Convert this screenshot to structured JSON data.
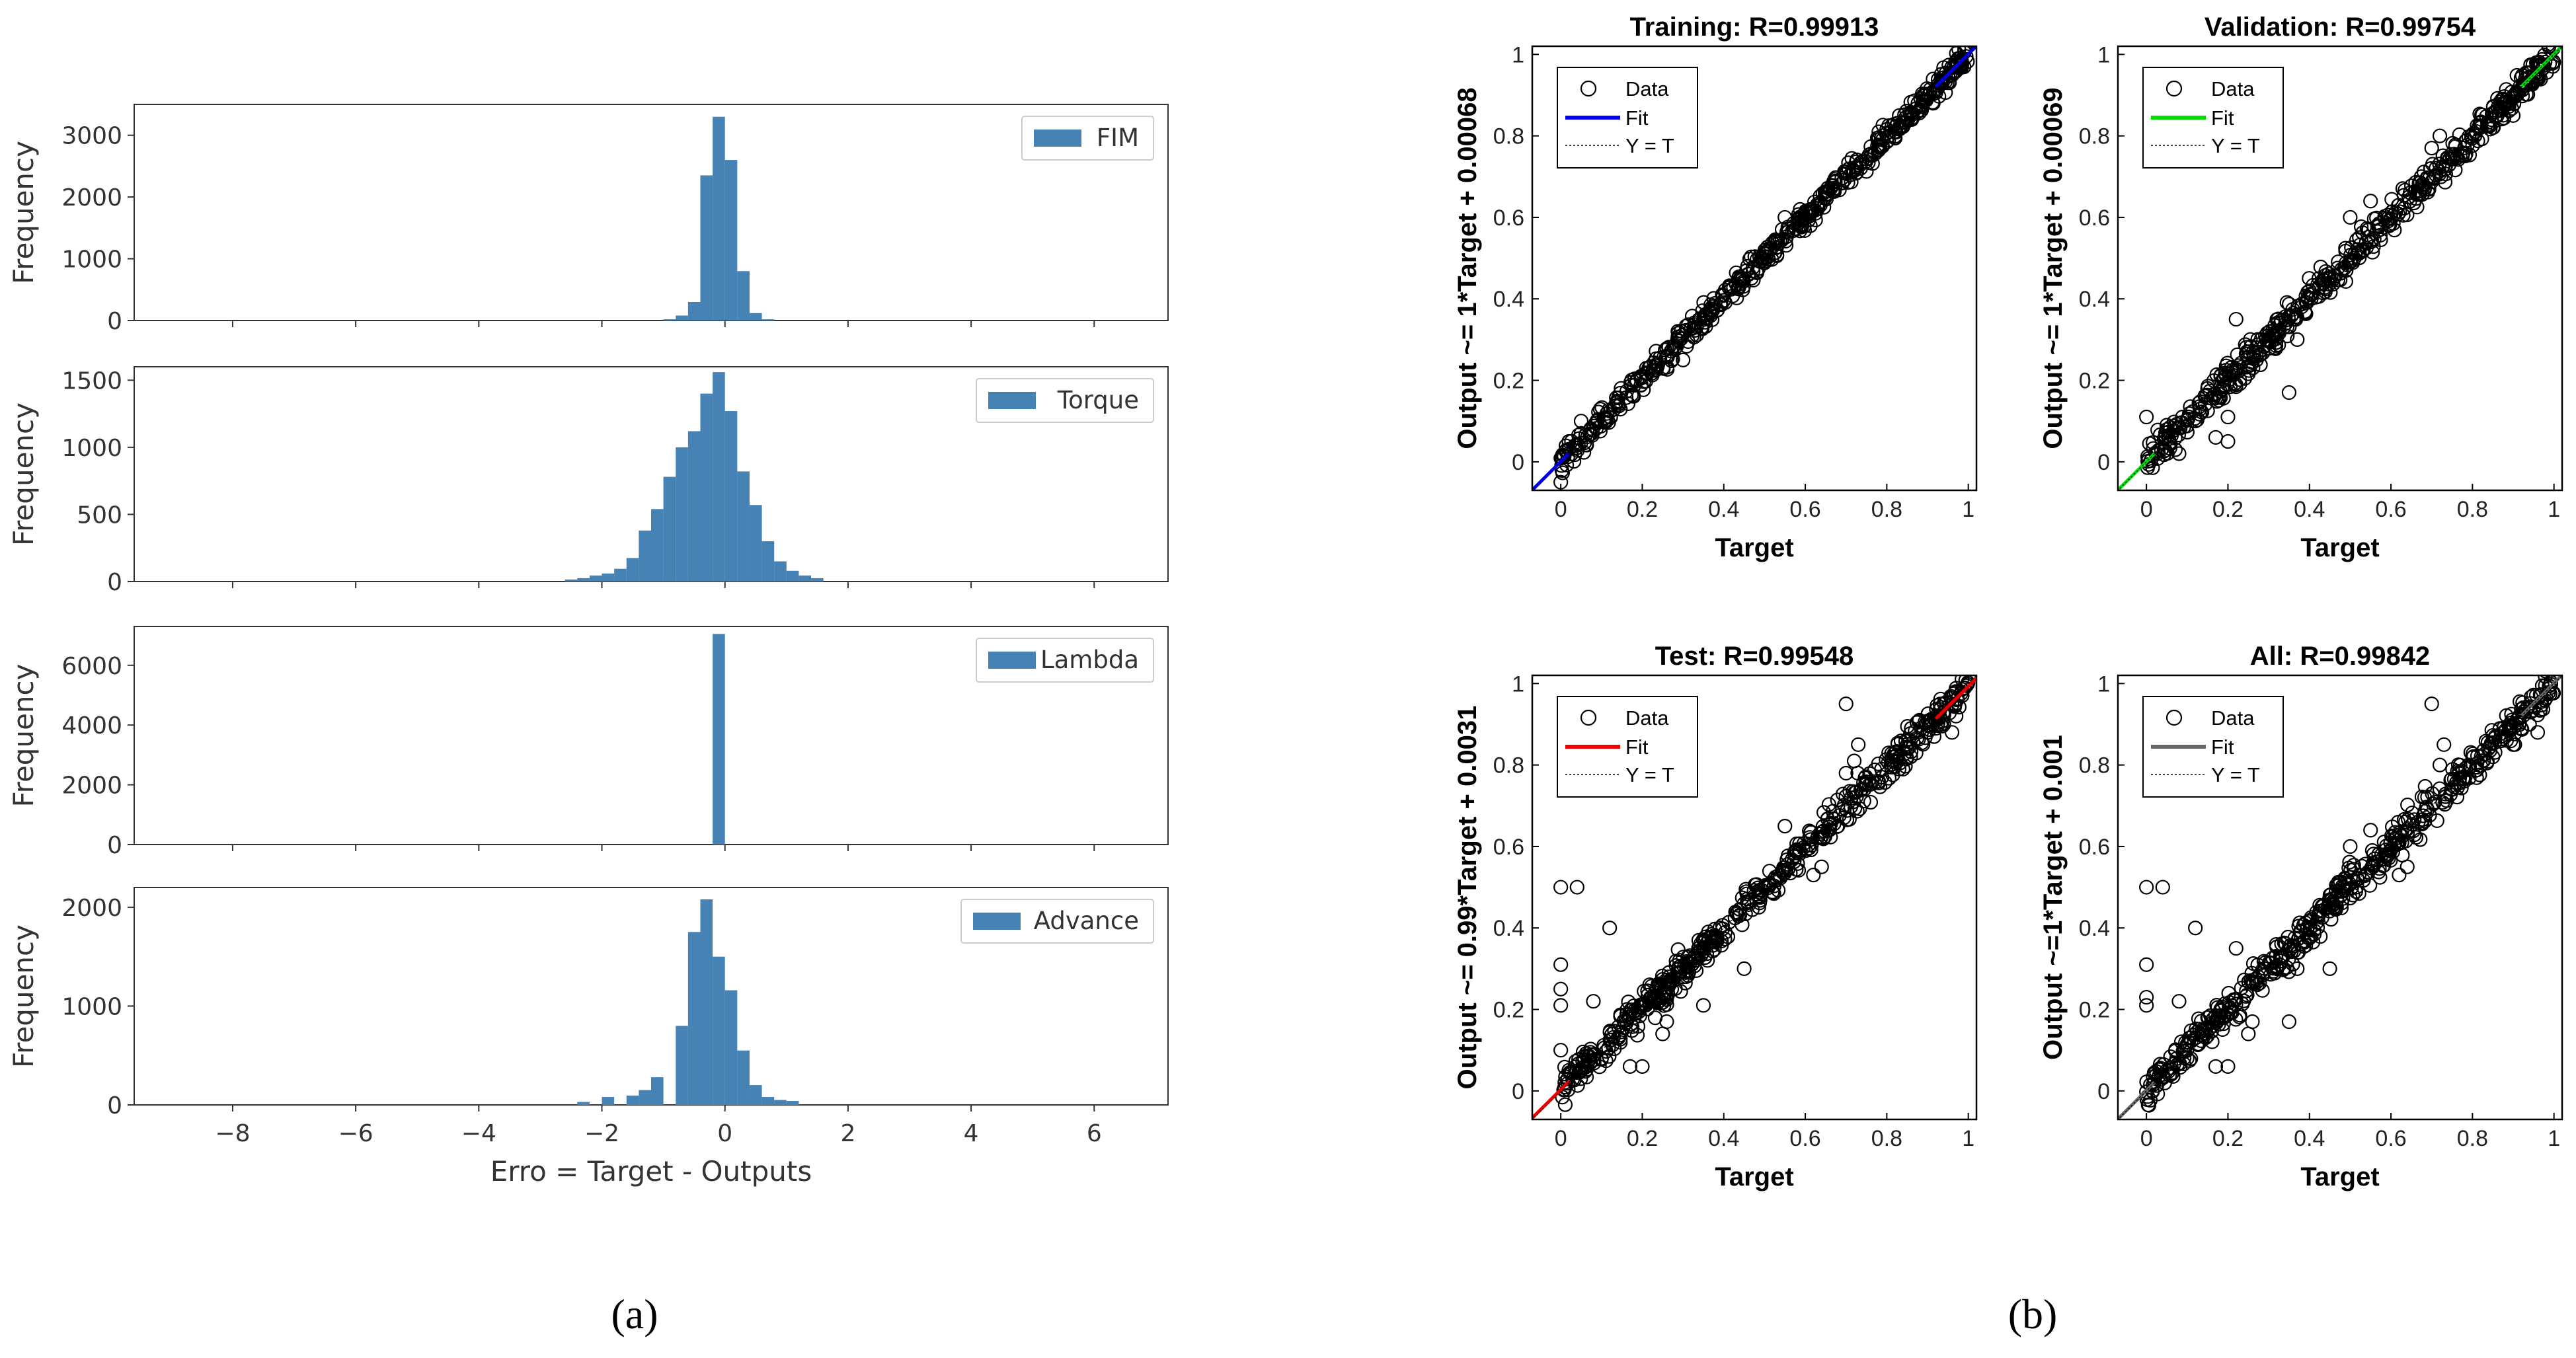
{
  "chart_data": [
    {
      "type": "bar",
      "title": "",
      "xlabel": "Erro = Target - Outputs",
      "ylabel": "Frequency",
      "xlim": [
        -9.6,
        7.2
      ],
      "xticks": [
        -8,
        -6,
        -4,
        -2,
        0,
        2,
        4,
        6
      ],
      "panels": [
        {
          "name": "FIM",
          "ylim": [
            0,
            3500
          ],
          "yticks": [
            0,
            1000,
            2000,
            3000
          ],
          "bins": [
            [
              -1.0,
              20
            ],
            [
              -0.8,
              80
            ],
            [
              -0.6,
              300
            ],
            [
              -0.4,
              2350
            ],
            [
              -0.2,
              3300
            ],
            [
              0.0,
              2600
            ],
            [
              0.2,
              800
            ],
            [
              0.4,
              120
            ],
            [
              0.6,
              20
            ]
          ]
        },
        {
          "name": "Torque",
          "ylim": [
            0,
            1600
          ],
          "yticks": [
            0,
            500,
            1000,
            1500
          ],
          "bins": [
            [
              -2.6,
              15
            ],
            [
              -2.4,
              25
            ],
            [
              -2.2,
              45
            ],
            [
              -2.0,
              60
            ],
            [
              -1.8,
              95
            ],
            [
              -1.6,
              175
            ],
            [
              -1.4,
              380
            ],
            [
              -1.2,
              540
            ],
            [
              -1.0,
              780
            ],
            [
              -0.8,
              1000
            ],
            [
              -0.6,
              1120
            ],
            [
              -0.4,
              1400
            ],
            [
              -0.2,
              1560
            ],
            [
              0.0,
              1270
            ],
            [
              0.2,
              820
            ],
            [
              0.4,
              570
            ],
            [
              0.6,
              300
            ],
            [
              0.8,
              150
            ],
            [
              1.0,
              80
            ],
            [
              1.2,
              45
            ],
            [
              1.4,
              25
            ]
          ]
        },
        {
          "name": "Lambda",
          "ylim": [
            0,
            7300
          ],
          "yticks": [
            0,
            2000,
            4000,
            6000
          ],
          "bins": [
            [
              -0.2,
              7050
            ]
          ]
        },
        {
          "name": "Advance",
          "ylim": [
            0,
            2200
          ],
          "yticks": [
            0,
            1000,
            2000
          ],
          "bins": [
            [
              -2.4,
              30
            ],
            [
              -2.0,
              80
            ],
            [
              -1.6,
              95
            ],
            [
              -1.4,
              150
            ],
            [
              -1.2,
              280
            ],
            [
              -0.8,
              800
            ],
            [
              -0.6,
              1750
            ],
            [
              -0.4,
              2080
            ],
            [
              -0.2,
              1500
            ],
            [
              0.0,
              1160
            ],
            [
              0.2,
              550
            ],
            [
              0.4,
              200
            ],
            [
              0.6,
              80
            ],
            [
              0.8,
              50
            ],
            [
              1.0,
              40
            ]
          ]
        }
      ]
    },
    {
      "type": "scatter",
      "xlim": [
        -0.07,
        1.02
      ],
      "ylim": [
        -0.07,
        1.02
      ],
      "xticks": [
        0,
        0.2,
        0.4,
        0.6,
        0.8,
        1
      ],
      "yticks": [
        0,
        0.2,
        0.4,
        0.6,
        0.8,
        1
      ],
      "legend": [
        "Data",
        "Fit",
        "Y = T"
      ],
      "panels": [
        {
          "title": "Training: R=0.99913",
          "xlabel": "Target",
          "ylabel": "Output ~= 1*Target + 0.00068",
          "fit_color": "#0000ff",
          "fit_slope": 1,
          "fit_intercept": 0.00068,
          "noise": 0.015,
          "outliers": [
            [
              0,
              -0.05
            ],
            [
              0.02,
              0.05
            ],
            [
              0.05,
              0.1
            ],
            [
              0.3,
              0.25
            ],
            [
              0.55,
              0.6
            ]
          ]
        },
        {
          "title": "Validation: R=0.99754",
          "xlabel": "Target",
          "ylabel": "Output ~= 1*Target + 0.00069",
          "fit_color": "#00dd00",
          "fit_slope": 1,
          "fit_intercept": 0.00069,
          "noise": 0.02,
          "outliers": [
            [
              0,
              0.11
            ],
            [
              0.05,
              0.09
            ],
            [
              0.08,
              0.02
            ],
            [
              0.12,
              0.1
            ],
            [
              0.15,
              0.18
            ],
            [
              0.17,
              0.06
            ],
            [
              0.2,
              0.05
            ],
            [
              0.2,
              0.11
            ],
            [
              0.22,
              0.35
            ],
            [
              0.27,
              0.25
            ],
            [
              0.35,
              0.17
            ],
            [
              0.3,
              0.3
            ],
            [
              0.37,
              0.3
            ],
            [
              0.5,
              0.6
            ],
            [
              0.55,
              0.64
            ],
            [
              0.7,
              0.77
            ],
            [
              0.72,
              0.8
            ],
            [
              0.85,
              0.82
            ],
            [
              0.87,
              0.87
            ],
            [
              0.9,
              0.85
            ]
          ]
        },
        {
          "title": "Test: R=0.99548",
          "xlabel": "Target",
          "ylabel": "Output ~= 0.99*Target + 0.0031",
          "fit_color": "#ee0000",
          "fit_slope": 0.99,
          "fit_intercept": 0.0031,
          "noise": 0.02,
          "outliers": [
            [
              0,
              0.5
            ],
            [
              0.04,
              0.5
            ],
            [
              0,
              0.31
            ],
            [
              0,
              0.25
            ],
            [
              0,
              0.21
            ],
            [
              0.12,
              0.4
            ],
            [
              0.08,
              0.22
            ],
            [
              0.05,
              0.05
            ],
            [
              0.1,
              0.08
            ],
            [
              0.17,
              0.06
            ],
            [
              0.25,
              0.14
            ],
            [
              0.26,
              0.17
            ],
            [
              0.3,
              0.28
            ],
            [
              0.35,
              0.21
            ],
            [
              0.45,
              0.3
            ],
            [
              0.5,
              0.5
            ],
            [
              0.55,
              0.65
            ],
            [
              0.62,
              0.53
            ],
            [
              0.64,
              0.55
            ],
            [
              0.7,
              0.78
            ],
            [
              0.72,
              0.81
            ],
            [
              0.73,
              0.85
            ],
            [
              0.7,
              0.95
            ],
            [
              0.78,
              0.76
            ],
            [
              0.86,
              0.89
            ],
            [
              0.88,
              0.91
            ],
            [
              0.9,
              0.88
            ],
            [
              0.92,
              0.89
            ],
            [
              0.94,
              0.9
            ],
            [
              0.96,
              0.88
            ],
            [
              0.97,
              0.92
            ],
            [
              0.2,
              0.06
            ],
            [
              0,
              0.1
            ]
          ]
        },
        {
          "title": "All: R=0.99842",
          "xlabel": "Target",
          "ylabel": "Output ~=1*Target + 0.001",
          "fit_color": "#666666",
          "fit_slope": 1,
          "fit_intercept": 0.001,
          "noise": 0.022,
          "outliers": [
            [
              0,
              0.5
            ],
            [
              0.04,
              0.5
            ],
            [
              0,
              0.31
            ],
            [
              0,
              0.23
            ],
            [
              0,
              0.21
            ],
            [
              0.12,
              0.4
            ],
            [
              0.08,
              0.22
            ],
            [
              0.05,
              0.05
            ],
            [
              0.1,
              0.08
            ],
            [
              0.17,
              0.06
            ],
            [
              0.22,
              0.35
            ],
            [
              0.25,
              0.14
            ],
            [
              0.26,
              0.17
            ],
            [
              0.35,
              0.17
            ],
            [
              0.37,
              0.3
            ],
            [
              0.45,
              0.3
            ],
            [
              0.5,
              0.6
            ],
            [
              0.55,
              0.64
            ],
            [
              0.62,
              0.53
            ],
            [
              0.64,
              0.55
            ],
            [
              0.7,
              0.95
            ],
            [
              0.72,
              0.8
            ],
            [
              0.73,
              0.85
            ],
            [
              0.78,
              0.76
            ],
            [
              0.85,
              0.82
            ],
            [
              0.87,
              0.87
            ],
            [
              0.9,
              0.85
            ],
            [
              0.92,
              0.89
            ],
            [
              0.94,
              0.9
            ],
            [
              0.96,
              0.88
            ],
            [
              0.2,
              0.06
            ],
            [
              0.15,
              0.18
            ]
          ]
        }
      ]
    }
  ],
  "captions": {
    "a": "(a)",
    "b": "(b)"
  },
  "style": {
    "hist_bar": "#4682b4",
    "marker": "#000000"
  }
}
